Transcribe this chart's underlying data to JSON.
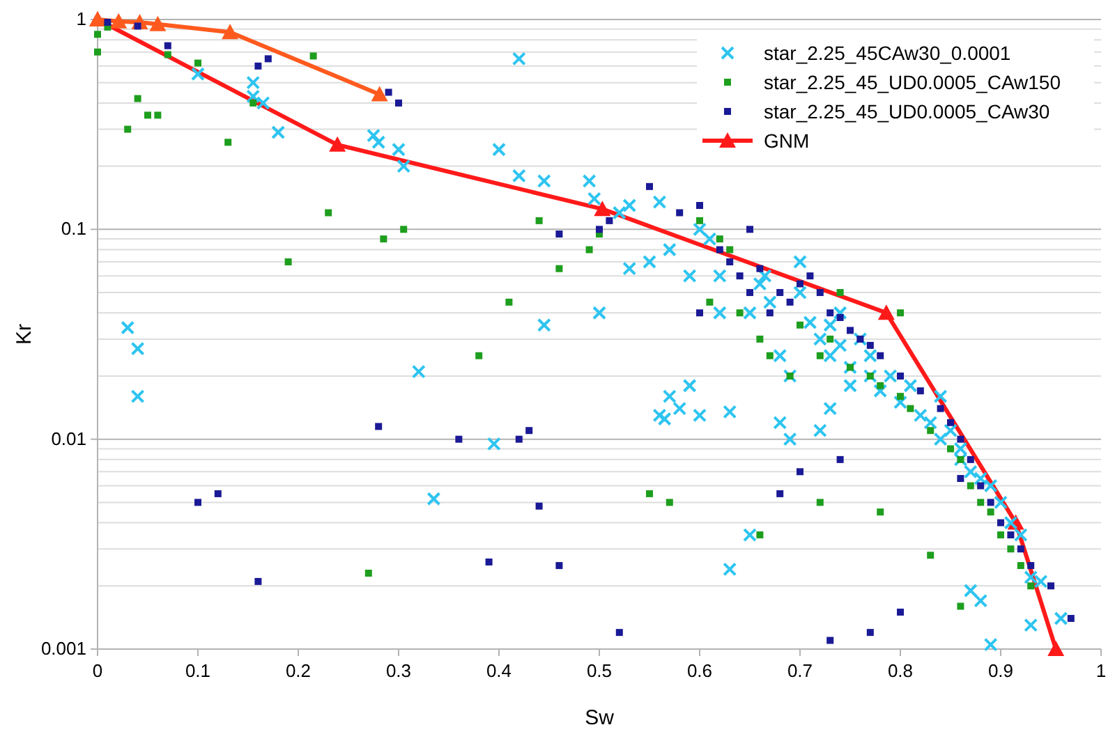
{
  "chart_data": {
    "type": "scatter",
    "xlabel": "Sw",
    "ylabel": "Kr",
    "log": true,
    "grid": "y",
    "legend": "top right",
    "xlim": [
      0,
      1
    ],
    "xticks": [
      0,
      0.1,
      0.2,
      0.3,
      0.4,
      0.5,
      0.6,
      0.7,
      0.8,
      0.9,
      1
    ],
    "ylim": [
      0.001,
      1
    ],
    "yticks": [
      {
        "value": 0.001,
        "label": "0.001"
      },
      {
        "value": 0.002,
        "label": null
      },
      {
        "value": 0.003,
        "label": null
      },
      {
        "value": 0.004,
        "label": null
      },
      {
        "value": 0.005,
        "label": null
      },
      {
        "value": 0.006,
        "label": null
      },
      {
        "value": 0.007,
        "label": null
      },
      {
        "value": 0.008,
        "label": null
      },
      {
        "value": 0.009,
        "label": null
      },
      {
        "value": 0.01,
        "label": "0.01"
      },
      {
        "value": 0.02,
        "label": null
      },
      {
        "value": 0.03,
        "label": null
      },
      {
        "value": 0.04,
        "label": null
      },
      {
        "value": 0.05,
        "label": null
      },
      {
        "value": 0.06,
        "label": null
      },
      {
        "value": 0.07,
        "label": null
      },
      {
        "value": 0.08,
        "label": null
      },
      {
        "value": 0.09,
        "label": null
      },
      {
        "value": 0.1,
        "label": "0.1"
      },
      {
        "value": 0.2,
        "label": null
      },
      {
        "value": 0.3,
        "label": null
      },
      {
        "value": 0.4,
        "label": null
      },
      {
        "value": 0.5,
        "label": null
      },
      {
        "value": 0.6,
        "label": null
      },
      {
        "value": 0.7,
        "label": null
      },
      {
        "value": 0.8,
        "label": null
      },
      {
        "value": 0.9,
        "label": null
      },
      {
        "value": 1,
        "label": "1"
      }
    ],
    "series": [
      {
        "name": "star_2.25_45CAw30_0.0001",
        "marker": "cross",
        "color": "#2ec4f0",
        "x": [
          0.03,
          0.04,
          0.04,
          0.1,
          0.155,
          0.155,
          0.165,
          0.18,
          0.275,
          0.28,
          0.3,
          0.305,
          0.32,
          0.335,
          0.395,
          0.4,
          0.42,
          0.42,
          0.445,
          0.445,
          0.49,
          0.495,
          0.5,
          0.52,
          0.53,
          0.56,
          0.56,
          0.58,
          0.565,
          0.57,
          0.59,
          0.6,
          0.6,
          0.61,
          0.62,
          0.63,
          0.63,
          0.65,
          0.65,
          0.66,
          0.665,
          0.67,
          0.68,
          0.68,
          0.69,
          0.69,
          0.7,
          0.7,
          0.71,
          0.72,
          0.72,
          0.73,
          0.73,
          0.74,
          0.75,
          0.75,
          0.76,
          0.77,
          0.77,
          0.78,
          0.79,
          0.8,
          0.81,
          0.82,
          0.83,
          0.84,
          0.84,
          0.85,
          0.86,
          0.86,
          0.87,
          0.88,
          0.89,
          0.9,
          0.91,
          0.92,
          0.93,
          0.94,
          0.96,
          0.93,
          0.89,
          0.87,
          0.88,
          0.73,
          0.74,
          0.55,
          0.57,
          0.59,
          0.62,
          0.53
        ],
        "values": [
          0.034,
          0.027,
          0.016,
          0.55,
          0.5,
          0.43,
          0.4,
          0.29,
          0.28,
          0.26,
          0.24,
          0.2,
          0.021,
          0.0052,
          0.0095,
          0.24,
          0.18,
          0.65,
          0.035,
          0.17,
          0.17,
          0.14,
          0.04,
          0.12,
          0.13,
          0.135,
          0.013,
          0.014,
          0.0125,
          0.016,
          0.018,
          0.1,
          0.013,
          0.09,
          0.04,
          0.0135,
          0.0024,
          0.04,
          0.0035,
          0.055,
          0.06,
          0.045,
          0.025,
          0.012,
          0.01,
          0.02,
          0.05,
          0.07,
          0.036,
          0.03,
          0.011,
          0.025,
          0.014,
          0.028,
          0.022,
          0.018,
          0.03,
          0.025,
          0.02,
          0.017,
          0.02,
          0.015,
          0.018,
          0.013,
          0.012,
          0.016,
          0.01,
          0.011,
          0.009,
          0.008,
          0.007,
          0.0065,
          0.006,
          0.005,
          0.004,
          0.0035,
          0.0022,
          0.0021,
          0.0014,
          0.0013,
          0.00105,
          0.0019,
          0.0017,
          0.035,
          0.04,
          0.07,
          0.08,
          0.06,
          0.06,
          0.065
        ]
      },
      {
        "name": "star_2.25_45_UD0.0005_CAw150",
        "marker": "square",
        "color": "#1e9e1e",
        "x": [
          0,
          0,
          0.01,
          0.03,
          0.04,
          0.05,
          0.06,
          0.07,
          0.1,
          0.13,
          0.155,
          0.19,
          0.215,
          0.23,
          0.27,
          0.285,
          0.305,
          0.38,
          0.41,
          0.44,
          0.46,
          0.49,
          0.5,
          0.55,
          0.57,
          0.6,
          0.62,
          0.63,
          0.64,
          0.66,
          0.67,
          0.69,
          0.7,
          0.72,
          0.73,
          0.75,
          0.77,
          0.78,
          0.8,
          0.81,
          0.83,
          0.85,
          0.86,
          0.87,
          0.88,
          0.89,
          0.9,
          0.91,
          0.92,
          0.93,
          0.66,
          0.72,
          0.78,
          0.83,
          0.86,
          0.61,
          0.74,
          0.8
        ],
        "values": [
          0.7,
          0.85,
          0.92,
          0.3,
          0.42,
          0.35,
          0.35,
          0.68,
          0.62,
          0.26,
          0.4,
          0.07,
          0.67,
          0.12,
          0.0023,
          0.09,
          0.1,
          0.025,
          0.045,
          0.11,
          0.065,
          0.08,
          0.095,
          0.0055,
          0.005,
          0.11,
          0.09,
          0.08,
          0.04,
          0.03,
          0.025,
          0.02,
          0.035,
          0.025,
          0.03,
          0.022,
          0.02,
          0.018,
          0.016,
          0.014,
          0.011,
          0.009,
          0.008,
          0.006,
          0.005,
          0.0045,
          0.0035,
          0.003,
          0.0025,
          0.002,
          0.0035,
          0.005,
          0.0045,
          0.0028,
          0.0016,
          0.045,
          0.05,
          0.04
        ]
      },
      {
        "name": "star_2.25_45_UD0.0005_CAw30",
        "marker": "square",
        "color": "#1a1a96",
        "x": [
          0.01,
          0.04,
          0.07,
          0.1,
          0.12,
          0.16,
          0.16,
          0.17,
          0.28,
          0.29,
          0.3,
          0.36,
          0.39,
          0.42,
          0.44,
          0.46,
          0.5,
          0.51,
          0.43,
          0.46,
          0.52,
          0.55,
          0.58,
          0.6,
          0.62,
          0.63,
          0.64,
          0.65,
          0.66,
          0.67,
          0.68,
          0.69,
          0.7,
          0.71,
          0.72,
          0.73,
          0.74,
          0.75,
          0.76,
          0.77,
          0.78,
          0.8,
          0.82,
          0.84,
          0.85,
          0.86,
          0.87,
          0.88,
          0.89,
          0.9,
          0.91,
          0.92,
          0.93,
          0.95,
          0.97,
          0.68,
          0.7,
          0.74,
          0.77,
          0.8,
          0.86,
          0.73,
          0.65,
          0.6
        ],
        "values": [
          0.97,
          0.93,
          0.75,
          0.005,
          0.0055,
          0.0021,
          0.6,
          0.65,
          0.0115,
          0.45,
          0.4,
          0.01,
          0.0026,
          0.01,
          0.0048,
          0.095,
          0.1,
          0.11,
          0.011,
          0.0025,
          0.0012,
          0.16,
          0.12,
          0.13,
          0.08,
          0.07,
          0.06,
          0.05,
          0.065,
          0.04,
          0.05,
          0.045,
          0.055,
          0.06,
          0.05,
          0.04,
          0.038,
          0.033,
          0.03,
          0.028,
          0.025,
          0.02,
          0.017,
          0.014,
          0.012,
          0.01,
          0.008,
          0.006,
          0.005,
          0.004,
          0.0035,
          0.003,
          0.0025,
          0.002,
          0.0014,
          0.0055,
          0.007,
          0.008,
          0.0012,
          0.0015,
          0.0065,
          0.0011,
          0.1,
          0.04
        ]
      },
      {
        "name": "GNM",
        "type": "line",
        "marker": "triangle",
        "color": "#ff1a1a",
        "x": [
          0,
          0.239,
          0.503,
          0.786,
          0.915,
          0.955
        ],
        "values": [
          1,
          0.253,
          0.125,
          0.04,
          0.004,
          0.001
        ]
      },
      {
        "type": "line",
        "marker": "triangle",
        "color": "#ff5a1e",
        "x": [
          0,
          0.021,
          0.042,
          0.06,
          0.132,
          0.281
        ],
        "values": [
          1,
          0.98,
          0.97,
          0.95,
          0.87,
          0.44
        ]
      }
    ]
  }
}
